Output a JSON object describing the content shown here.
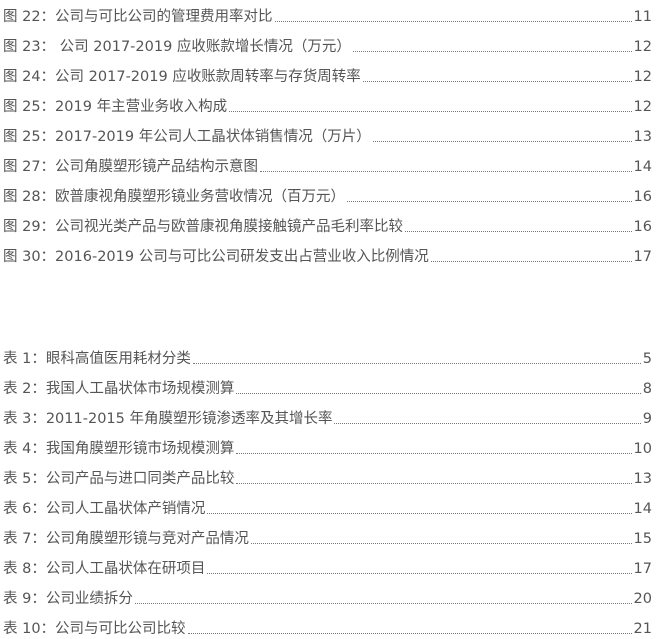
{
  "figures": [
    {
      "label": "图 22：公司与可比公司的管理费用率对比",
      "page": "11"
    },
    {
      "label": "图 23：  公司 2017-2019 应收账款增长情况（万元）",
      "page": "12"
    },
    {
      "label": "图 24：公司 2017-2019 应收账款周转率与存货周转率",
      "page": "12"
    },
    {
      "label": "图 25：2019 年主营业务收入构成",
      "page": "12"
    },
    {
      "label": "图 25：2017-2019 年公司人工晶状体销售情况（万片）",
      "page": "13"
    },
    {
      "label": "图 27：公司角膜塑形镜产品结构示意图",
      "page": "14"
    },
    {
      "label": "图 28：欧普康视角膜塑形镜业务营收情况（百万元）",
      "page": "16"
    },
    {
      "label": "图 29：公司视光类产品与欧普康视角膜接触镜产品毛利率比较",
      "page": "16"
    },
    {
      "label": "图 30：2016-2019 公司与可比公司研发支出占营业收入比例情况",
      "page": "17"
    }
  ],
  "tables": [
    {
      "label": "表 1：眼科高值医用耗材分类",
      "page": "5"
    },
    {
      "label": "表 2：我国人工晶状体市场规模测算",
      "page": "8"
    },
    {
      "label": "表 3：2011-2015 年角膜塑形镜渗透率及其增长率",
      "page": "9"
    },
    {
      "label": "表 4：我国角膜塑形镜市场规模测算",
      "page": "10"
    },
    {
      "label": "表 5：公司产品与进口同类产品比较",
      "page": "13"
    },
    {
      "label": "表 6：公司人工晶状体产销情况",
      "page": "14"
    },
    {
      "label": "表 7：公司角膜塑形镜与竞对产品情况",
      "page": "15"
    },
    {
      "label": "表 8：公司人工晶状体在研项目",
      "page": "17"
    },
    {
      "label": "表 9：公司业绩拆分",
      "page": "20"
    },
    {
      "label": "表 10：公司与可比公司比较",
      "page": "21"
    }
  ]
}
